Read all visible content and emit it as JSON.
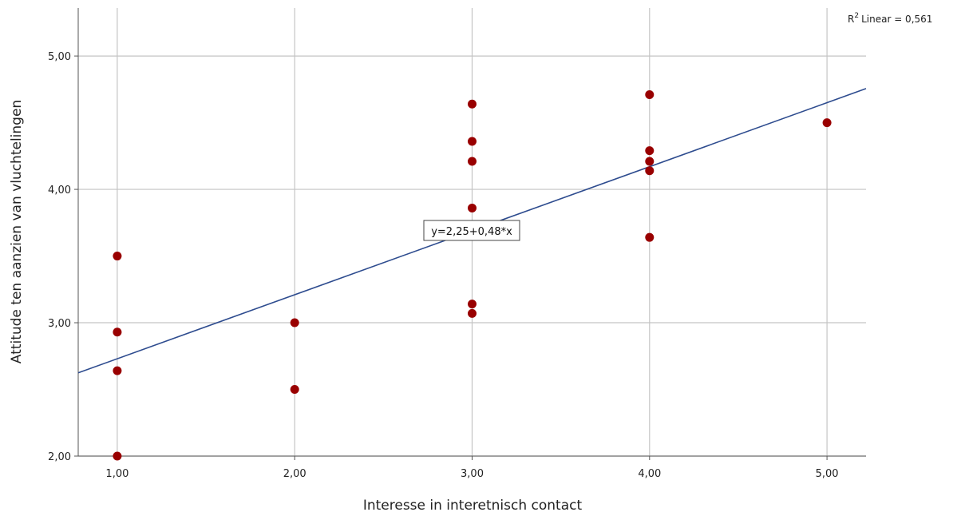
{
  "chart_data": {
    "type": "scatter",
    "xlabel": "Interesse in interetnisch contact",
    "ylabel": "Attitude ten aanzien van vluchtelingen",
    "xlim": [
      0.78,
      5.22
    ],
    "ylim": [
      2.0,
      5.36
    ],
    "x_ticks": [
      1,
      2,
      3,
      4,
      5
    ],
    "x_tick_labels": [
      "1,00",
      "2,00",
      "3,00",
      "4,00",
      "5,00"
    ],
    "y_ticks": [
      2,
      3,
      4,
      5
    ],
    "y_tick_labels": [
      "2,00",
      "3,00",
      "4,00",
      "5,00"
    ],
    "grid": true,
    "points": [
      {
        "x": 1,
        "y": 3.5
      },
      {
        "x": 1,
        "y": 2.93
      },
      {
        "x": 1,
        "y": 2.64
      },
      {
        "x": 1,
        "y": 2.0
      },
      {
        "x": 2,
        "y": 3.0
      },
      {
        "x": 2,
        "y": 2.5
      },
      {
        "x": 3,
        "y": 4.64
      },
      {
        "x": 3,
        "y": 4.36
      },
      {
        "x": 3,
        "y": 4.21
      },
      {
        "x": 3,
        "y": 3.86
      },
      {
        "x": 3,
        "y": 3.14
      },
      {
        "x": 3,
        "y": 3.07
      },
      {
        "x": 4,
        "y": 4.71
      },
      {
        "x": 4,
        "y": 4.29
      },
      {
        "x": 4,
        "y": 4.21
      },
      {
        "x": 4,
        "y": 4.14
      },
      {
        "x": 4,
        "y": 3.64
      },
      {
        "x": 5,
        "y": 4.5
      }
    ],
    "fit_line": {
      "intercept": 2.25,
      "slope": 0.48
    },
    "fit_label": "y=2,25+0,48*x",
    "r2_label": "Linear = 0,561",
    "r2_prefix": "R",
    "r2_sup": "2",
    "colors": {
      "point": "#990000",
      "line": "#2e4c8f",
      "grid": "#c4c4c4"
    }
  }
}
